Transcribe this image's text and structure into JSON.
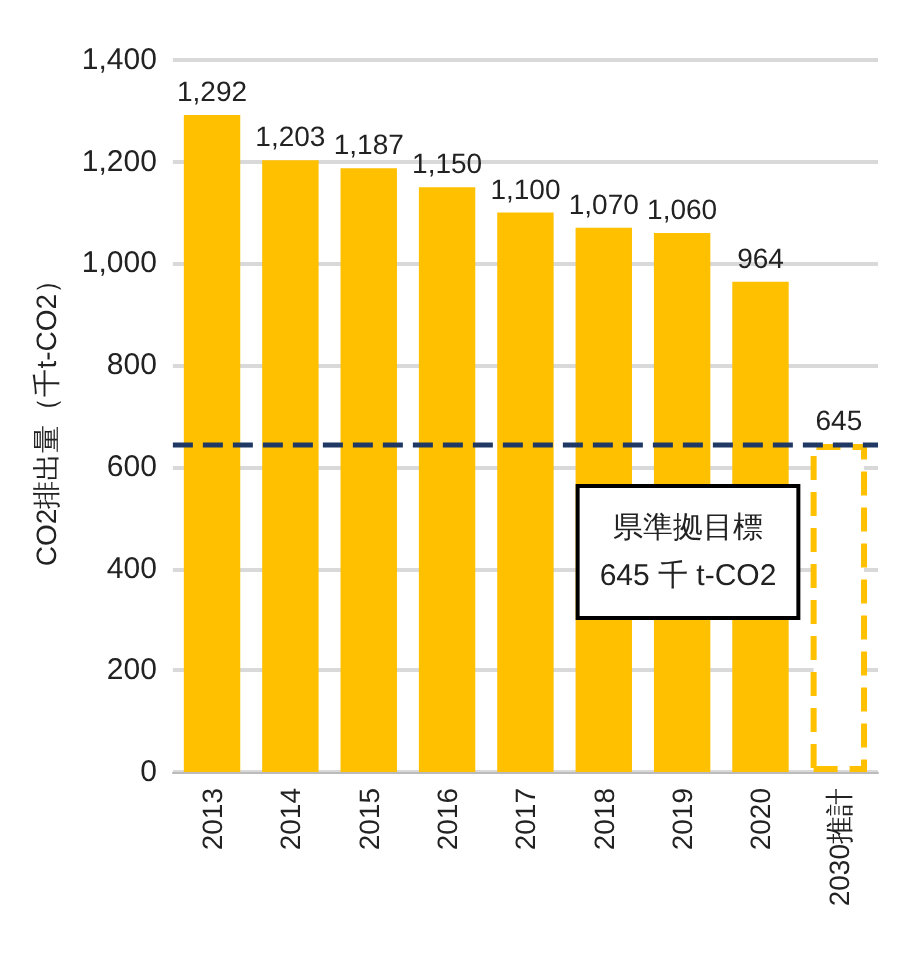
{
  "chart_data": {
    "type": "bar",
    "ylabel": "CO2排出量（千t-CO2）",
    "categories": [
      "2013",
      "2014",
      "2015",
      "2016",
      "2017",
      "2018",
      "2019",
      "2020",
      "2030推計"
    ],
    "series": [
      {
        "color": "#ffc000",
        "values": [
          1292,
          1203,
          1187,
          1150,
          1100,
          1070,
          1060,
          964,
          null
        ],
        "value_labels": [
          "1,292",
          "1,203",
          "1,187",
          "1,150",
          "1,100",
          "1,070",
          "1,060",
          "964",
          null
        ]
      },
      {
        "color": "#ffc000",
        "line_style": "dashed",
        "values": [
          null,
          null,
          null,
          null,
          null,
          null,
          null,
          null,
          645
        ],
        "value_labels": [
          null,
          null,
          null,
          null,
          null,
          null,
          null,
          null,
          "645"
        ]
      }
    ],
    "ylim": [
      0,
      1400
    ],
    "yticks": [
      0,
      {
        "value": 200,
        "label": "200"
      },
      {
        "value": 400,
        "label": "400"
      },
      {
        "value": 600,
        "label": "600"
      },
      {
        "value": 800,
        "label": "800"
      },
      {
        "value": 1000,
        "label": "1,000"
      },
      {
        "value": 1200,
        "label": "1,200"
      },
      {
        "value": 1400,
        "label": "1,400"
      }
    ],
    "grid": "y",
    "ref_lines": [
      {
        "axis": "y",
        "value": 645,
        "label": "県準拠目標\n645 千 t-CO2",
        "color": "#1f3864",
        "line_style": "dashed"
      }
    ]
  }
}
